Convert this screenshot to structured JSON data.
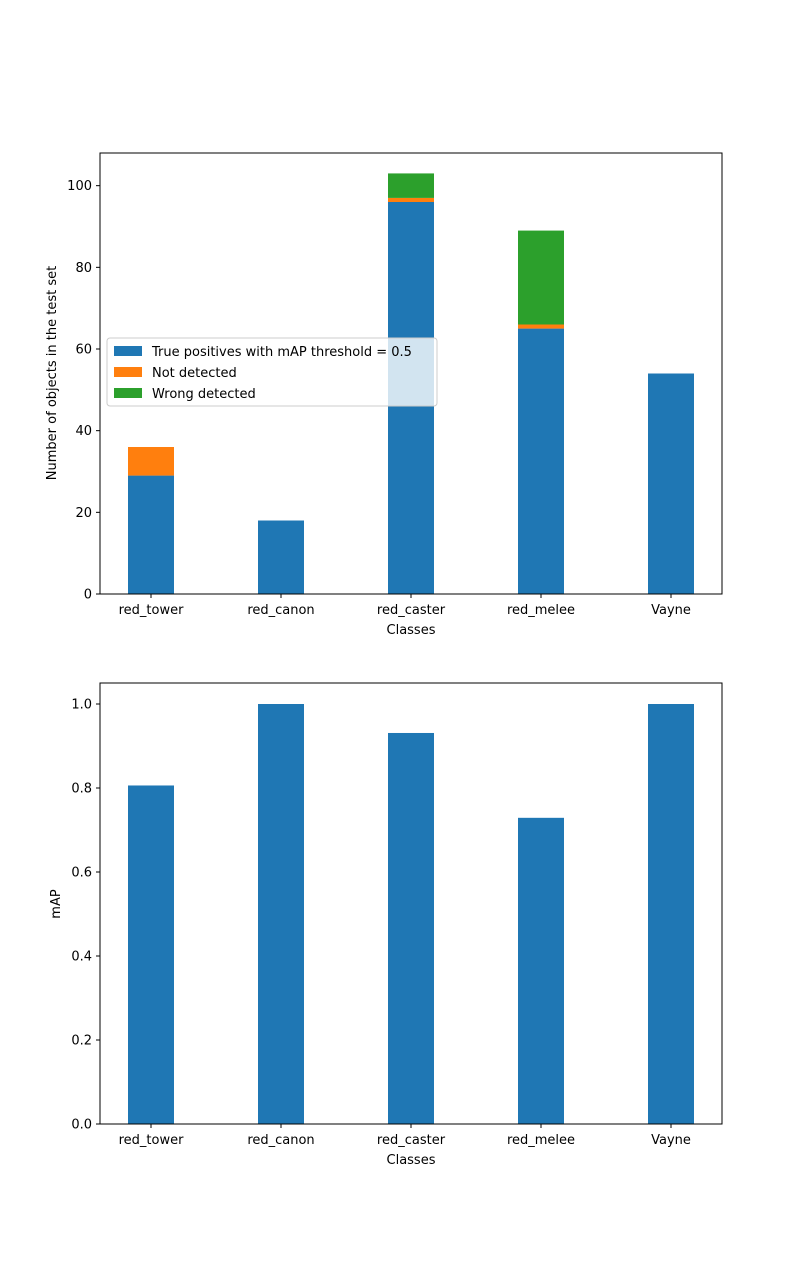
{
  "chart_data": [
    {
      "type": "bar",
      "stacked": true,
      "categories": [
        "red_tower",
        "red_canon",
        "red_caster",
        "red_melee",
        "Vayne"
      ],
      "series": [
        {
          "name": "True positives with mAP threshold = 0.5",
          "color": "#1f77b4",
          "values": [
            29,
            18,
            96,
            65,
            54
          ]
        },
        {
          "name": "Not detected",
          "color": "#ff7f0e",
          "values": [
            7,
            0,
            1,
            1,
            0
          ]
        },
        {
          "name": "Wrong detected",
          "color": "#2ca02c",
          "values": [
            0,
            0,
            6,
            23,
            0
          ]
        }
      ],
      "xlabel": "Classes",
      "ylabel": "Number of objects in the test set",
      "ylim": [
        0,
        108
      ],
      "yticks": [
        0,
        20,
        40,
        60,
        80,
        100
      ],
      "grid": false,
      "legend_position": "center-left"
    },
    {
      "type": "bar",
      "stacked": false,
      "categories": [
        "red_tower",
        "red_canon",
        "red_caster",
        "red_melee",
        "Vayne"
      ],
      "series": [
        {
          "color": "#1f77b4",
          "values": [
            0.806,
            1.0,
            0.931,
            0.729,
            1.0
          ]
        }
      ],
      "xlabel": "Classes",
      "ylabel": "mAP",
      "ylim": [
        0,
        1.05
      ],
      "yticks": [
        "0.0",
        "0.2",
        "0.4",
        "0.6",
        "0.8",
        "1.0"
      ],
      "grid": false
    }
  ]
}
